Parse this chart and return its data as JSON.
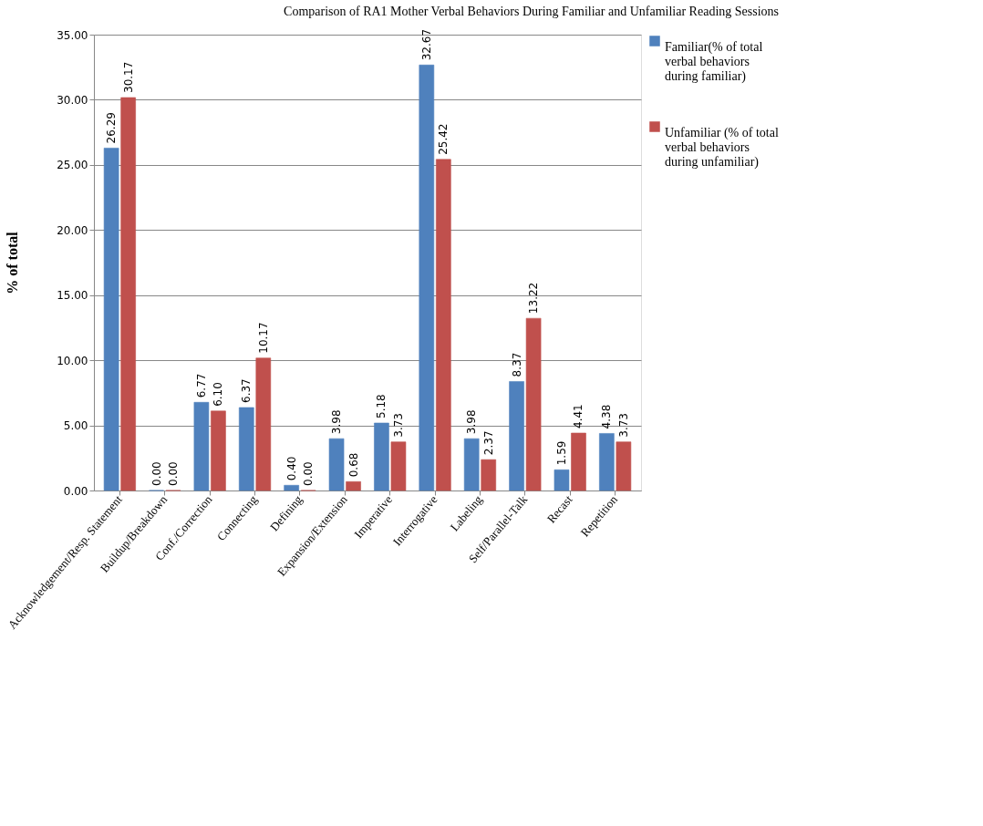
{
  "chart_data": {
    "type": "bar",
    "title": "Comparison of RA1 Mother Verbal Behaviors During Familiar and Unfamiliar Reading Sessions",
    "ylabel": "% of total",
    "categories": [
      "Acknowledgement/Resp. Statement",
      "Buildup/Breakdown",
      "Conf./Correction",
      "Connecting",
      "Defining",
      "Expansion/Extension",
      "Imperative",
      "Interrogative",
      "Labeling",
      "Self/Parallel-Talk",
      "Recast",
      "Repetition"
    ],
    "series": [
      {
        "name": "Familiar(% of total verbal behaviors during familiar)",
        "color": "#4f81bd",
        "values": [
          26.29,
          0,
          6.77,
          6.37,
          0.4,
          3.98,
          5.18,
          32.67,
          3.98,
          8.37,
          1.59,
          4.38
        ],
        "value_labels": [
          "26.29",
          "0.00",
          "6.77",
          "6.37",
          "0.40",
          "3.98",
          "5.18",
          "32.67",
          "3.98",
          "8.37",
          "1.59",
          "4.38"
        ]
      },
      {
        "name": "Unfamiliar (% of total verbal behaviors during unfamiliar)",
        "color": "#c0504d",
        "values": [
          30.17,
          0,
          6.1,
          10.17,
          0,
          0.68,
          3.73,
          25.42,
          2.37,
          13.22,
          4.41,
          3.73
        ],
        "value_labels": [
          "30.17",
          "0.00",
          "6.10",
          "10.17",
          "0.00",
          "0.68",
          "3.73",
          "25.42",
          "2.37",
          "13.22",
          "4.41",
          "3.73"
        ]
      }
    ],
    "ylim": [
      0,
      35
    ],
    "yticks": [
      {
        "value": 0,
        "label": "0.00"
      },
      {
        "value": 5,
        "label": "5.00"
      },
      {
        "value": 10,
        "label": "10.00"
      },
      {
        "value": 15,
        "label": "15.00"
      },
      {
        "value": 20,
        "label": "20.00"
      },
      {
        "value": 25,
        "label": "25.00"
      },
      {
        "value": 30,
        "label": "30.00"
      },
      {
        "value": 35,
        "label": "35.00"
      }
    ],
    "grid": "y",
    "legend": "right"
  }
}
